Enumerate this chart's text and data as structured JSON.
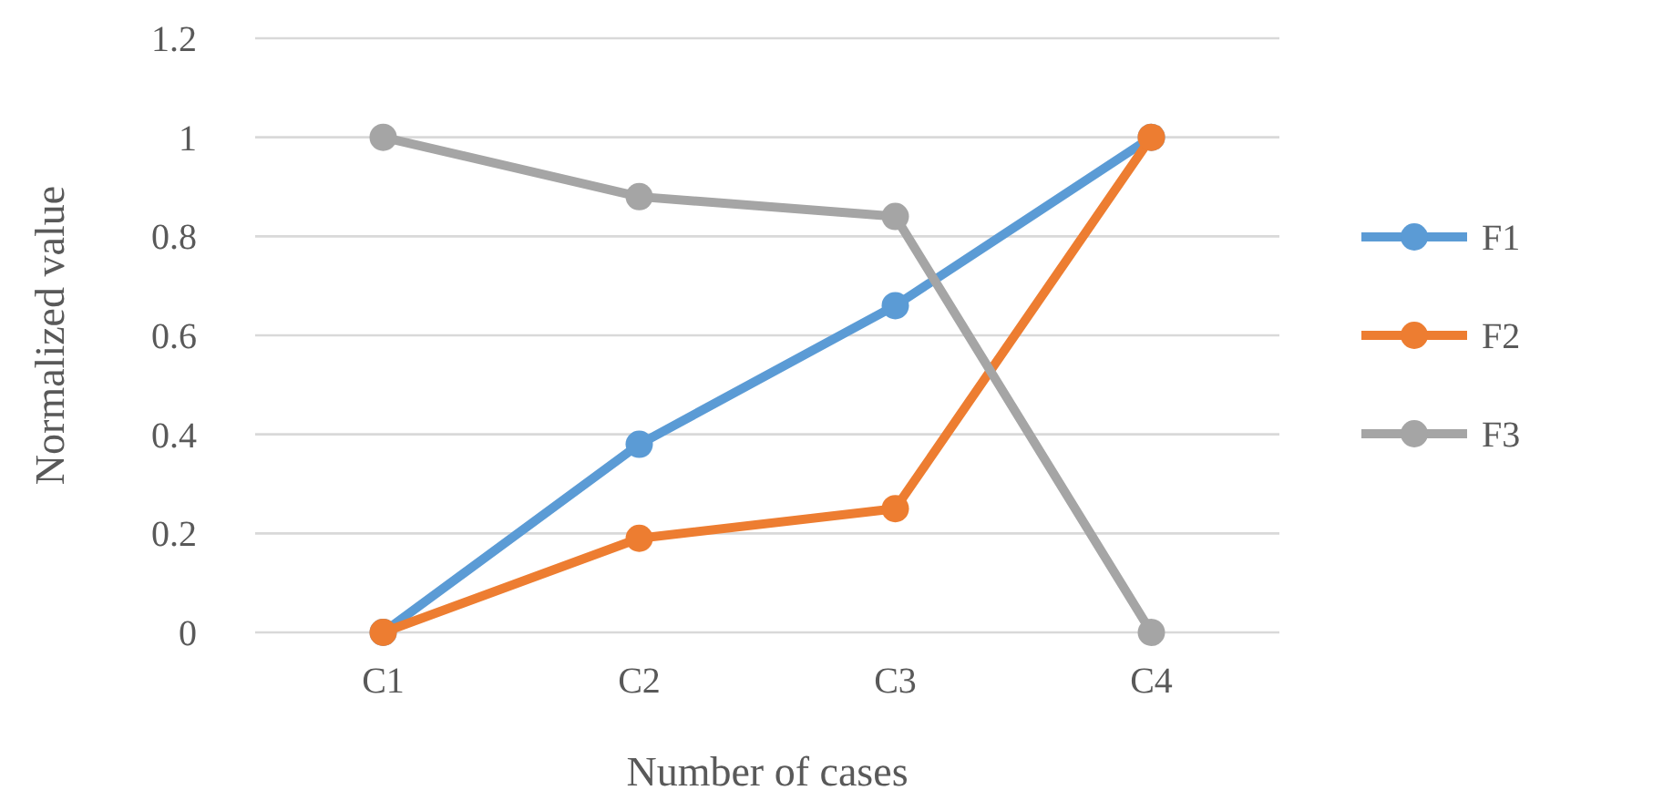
{
  "chart_data": {
    "type": "line",
    "xlabel": "Number of cases",
    "ylabel": "Normalized value",
    "categories": [
      "C1",
      "C2",
      "C3",
      "C4"
    ],
    "series": [
      {
        "name": "F1",
        "color": "#5b9bd5",
        "values": [
          0,
          0.38,
          0.66,
          1
        ]
      },
      {
        "name": "F2",
        "color": "#ed7d31",
        "values": [
          0,
          0.19,
          0.25,
          1
        ]
      },
      {
        "name": "F3",
        "color": "#a5a5a5",
        "values": [
          1,
          0.88,
          0.84,
          0
        ]
      }
    ],
    "ylim": [
      0,
      1.2
    ],
    "yticks": [
      0,
      0.2,
      0.4,
      0.6,
      0.8,
      1,
      1.2
    ],
    "grid": "y",
    "legend": "right",
    "marker": "circle",
    "line_style": "solid"
  }
}
